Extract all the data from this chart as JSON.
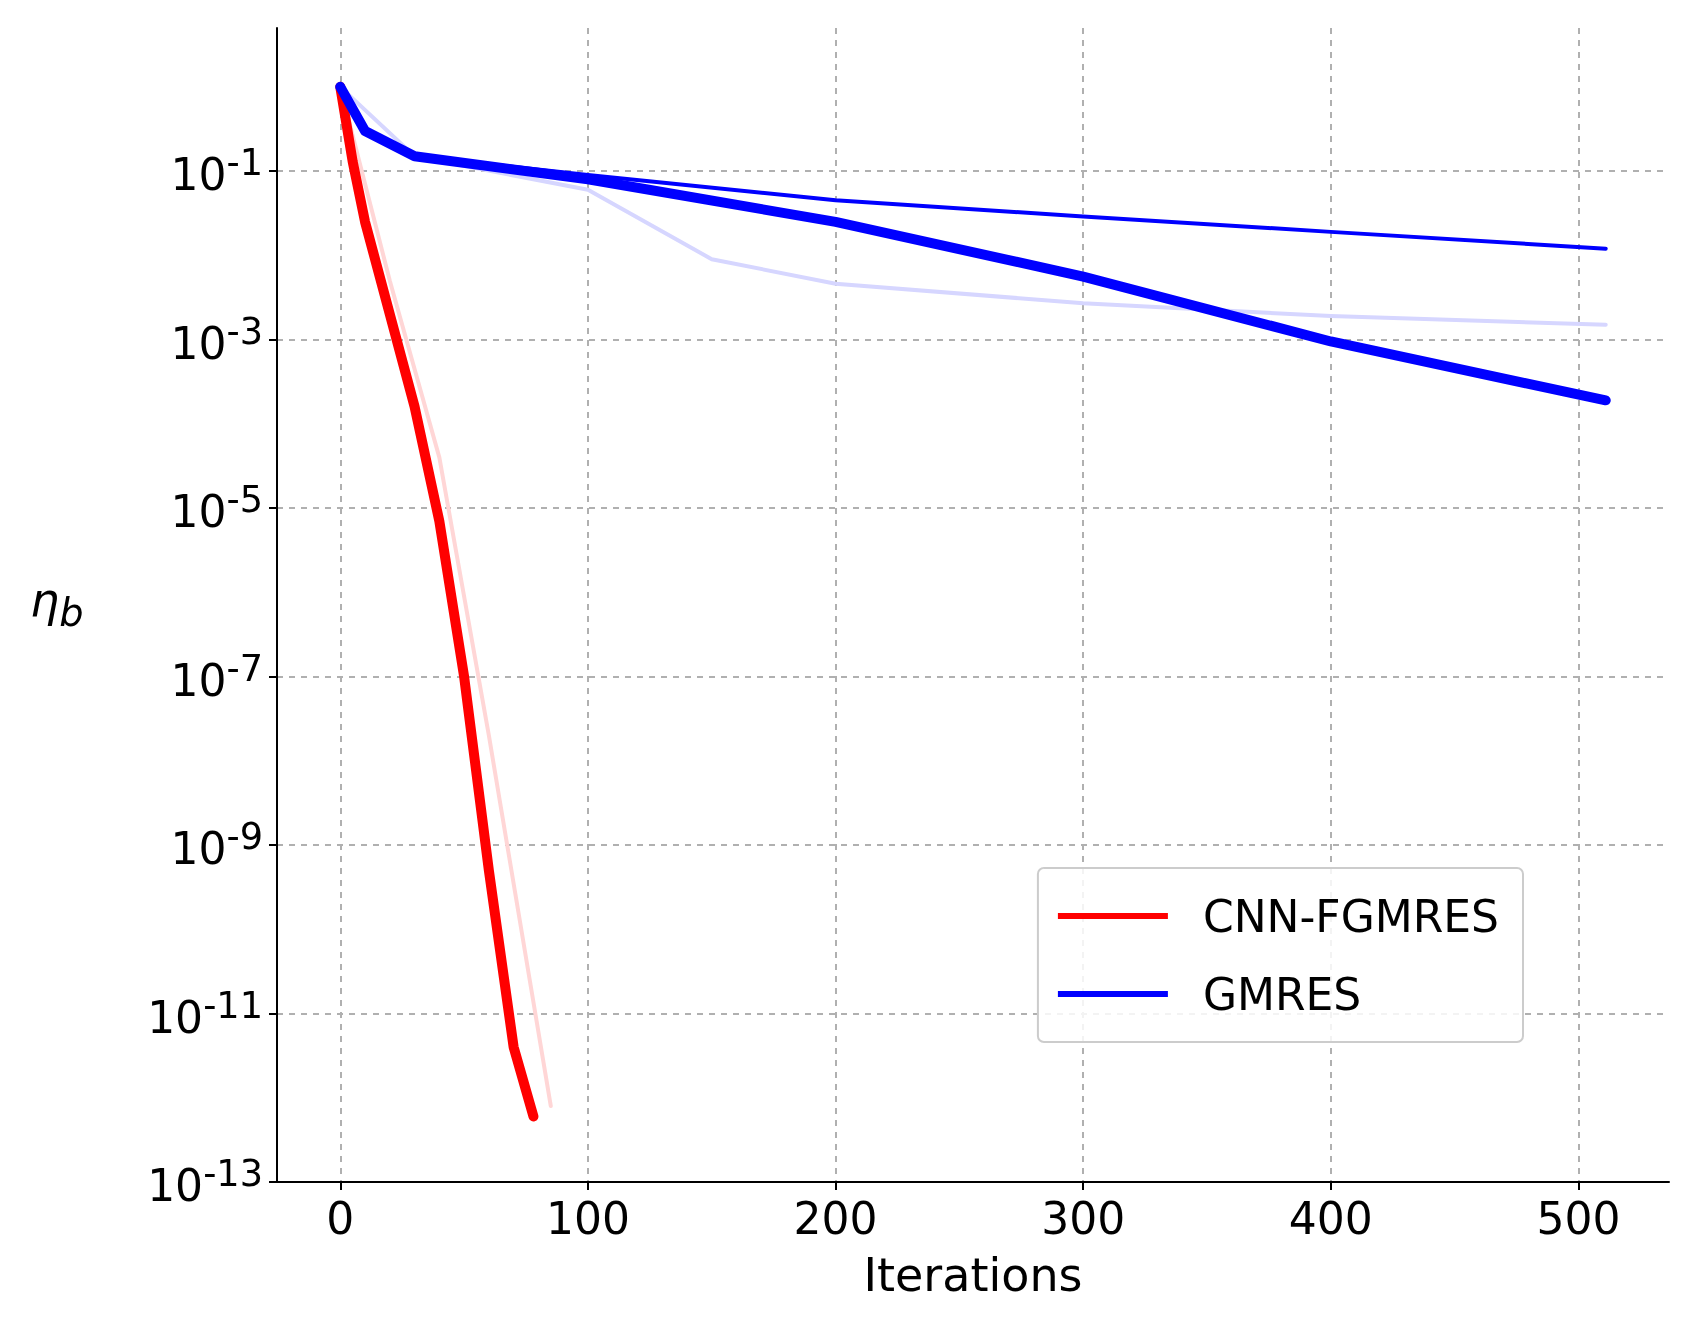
{
  "chart_data": {
    "type": "line",
    "xlabel": "Iterations",
    "ylabel": "η$_{b}$",
    "log": "y",
    "grid": true,
    "legend": "bottom right",
    "marker": "none",
    "line_style": "solid",
    "xlim": [
      -25.55,
      536.55
    ],
    "xticks": [
      0,
      100,
      200,
      300,
      400,
      500
    ],
    "ylim": [
      1e-13,
      5
    ],
    "yticks": [
      {
        "value": 0.1,
        "label": "10$^{-1}$"
      },
      {
        "value": 0.001,
        "label": "10$^{-3}$"
      },
      {
        "value": 1e-05,
        "label": "10$^{-5}$"
      },
      {
        "value": 1e-07,
        "label": "10$^{-7}$"
      },
      {
        "value": 1e-09,
        "label": "10$^{-9}$"
      },
      {
        "value": 1e-11,
        "label": "10$^{-11}$"
      },
      {
        "value": 1e-13,
        "label": "10$^{-13}$"
      }
    ],
    "series": [
      {
        "color": "#ffd6d6",
        "x": [
          0,
          20,
          40,
          60,
          85
        ],
        "values": [
          1,
          0.005,
          4e-05,
          2e-08,
          8e-13
        ]
      },
      {
        "color": "#d6d6ff",
        "x": [
          0,
          30,
          100,
          150,
          200,
          300,
          400,
          511
        ],
        "values": [
          1,
          0.15,
          0.06,
          0.009,
          0.0046,
          0.0027,
          0.0019,
          0.0015
        ]
      },
      {
        "name": "CNN-FGMRES",
        "color": "#ff0000",
        "x": [
          0,
          5,
          10,
          20,
          30,
          40,
          50,
          60,
          70,
          78
        ],
        "values": [
          1,
          0.13,
          0.025,
          0.002,
          0.00016,
          7e-06,
          1e-07,
          5e-10,
          4e-12,
          6e-13
        ]
      },
      {
        "name": "GMRES",
        "color": "#0000ff",
        "x": [
          0,
          10,
          30,
          100,
          200,
          300,
          400,
          511
        ],
        "values": [
          1,
          0.3,
          0.15,
          0.08,
          0.025,
          0.0056,
          0.00095,
          0.00019
        ]
      },
      {
        "color": "#0000ff",
        "x": [
          0,
          10,
          30,
          100,
          200,
          300,
          400,
          511
        ],
        "values": [
          1,
          0.3,
          0.15,
          0.09,
          0.045,
          0.029,
          0.019,
          0.012
        ]
      }
    ]
  }
}
